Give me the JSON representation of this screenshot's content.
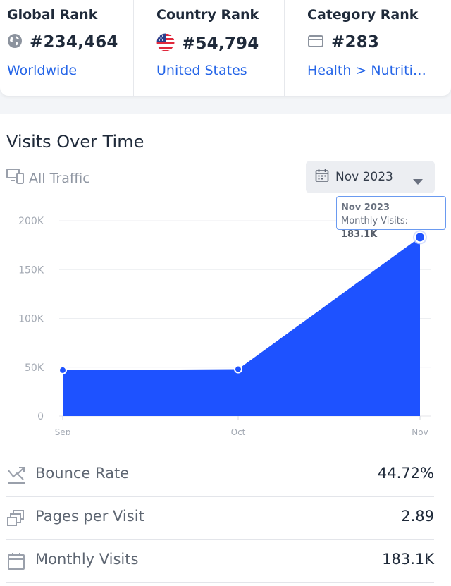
{
  "ranks": {
    "global": {
      "title": "Global Rank",
      "value": "#234,464",
      "link": "Worldwide",
      "icon": "globe-icon"
    },
    "country": {
      "title": "Country Rank",
      "value": "#54,794",
      "link": "United States",
      "icon": "us-flag-icon"
    },
    "category": {
      "title": "Category Rank",
      "value": "#283",
      "link": "Health > Nutritio…",
      "icon": "category-icon"
    }
  },
  "visits": {
    "title": "Visits Over Time",
    "traffic_filter": "All Traffic",
    "date_select": "Nov 2023",
    "tooltip": {
      "date": "Nov 2023",
      "label": "Monthly Visits:",
      "value": "183.1K"
    }
  },
  "chart_data": {
    "type": "area",
    "categories": [
      "Sep",
      "Oct",
      "Nov"
    ],
    "series": [
      {
        "values": [
          47000,
          48000,
          183100
        ]
      }
    ],
    "y_ticks": [
      "0",
      "50K",
      "100K",
      "150K",
      "200K"
    ],
    "ylim": [
      0,
      200000
    ],
    "grid": true,
    "color": "#1e52ff"
  },
  "metrics": [
    {
      "label": "Bounce Rate",
      "value": "44.72%",
      "icon": "bounce-rate-icon"
    },
    {
      "label": "Pages per Visit",
      "value": "2.89",
      "icon": "pages-icon"
    },
    {
      "label": "Monthly Visits",
      "value": "183.1K",
      "icon": "calendar-icon"
    }
  ],
  "colors": {
    "link": "#2666e8",
    "accent": "#1e52ff"
  }
}
